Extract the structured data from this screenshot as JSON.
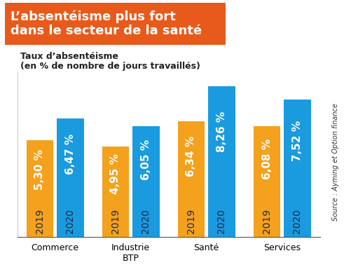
{
  "chart_data": {
    "type": "bar",
    "title": "L’absentéisme plus fort\ndans le secteur de la santé",
    "subtitle": "Taux d’absentéisme\n(en % de nombre de jours travaillés)",
    "source": "Source : Ayming et Option finance",
    "categories": [
      "Commerce",
      "Industrie\nBTP",
      "Santé",
      "Services"
    ],
    "series": [
      {
        "name": "2019",
        "color": "#f4a11d",
        "values": [
          5.3,
          4.95,
          6.34,
          6.08
        ],
        "value_labels": [
          "5,30 %",
          "4,95 %",
          "6,34 %",
          "6,08 %"
        ]
      },
      {
        "name": "2020",
        "color": "#1a9be0",
        "values": [
          6.47,
          6.05,
          8.26,
          7.52
        ],
        "value_labels": [
          "6,47 %",
          "6,05 %",
          "8,26 %",
          "7,52 %"
        ]
      }
    ],
    "ylim": [
      0,
      9
    ],
    "yticks": [],
    "grid": false,
    "data_labels": true,
    "tick_labels": "x"
  }
}
